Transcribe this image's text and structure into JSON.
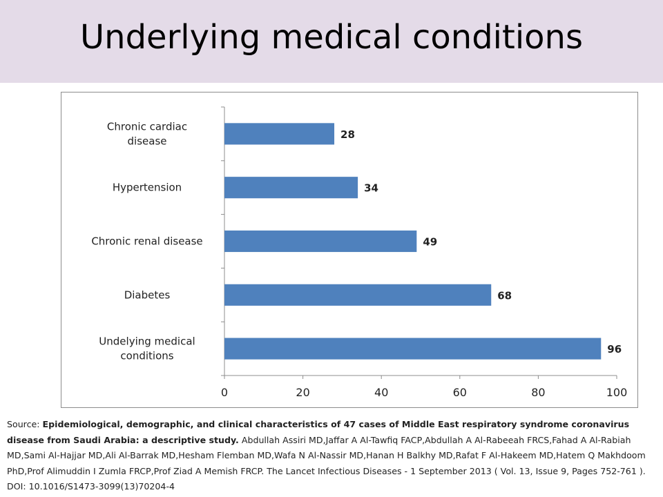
{
  "slide": {
    "title": "Underlying medical conditions"
  },
  "colors": {
    "title_band": "#e4dbe8",
    "bar": "#4f81bd"
  },
  "chart_data": {
    "type": "bar",
    "orientation": "horizontal",
    "categories": [
      "Chronic cardiac disease",
      "Hypertension",
      "Chronic renal disease",
      "Diabetes",
      "Undelying medical conditions"
    ],
    "values": [
      28,
      34,
      49,
      68,
      96
    ],
    "data_labels": [
      "28",
      "34",
      "49",
      "68",
      "96"
    ],
    "xlim": [
      0,
      100
    ],
    "x_ticks": [
      0,
      20,
      40,
      60,
      80,
      100
    ],
    "grid": false,
    "legend": "none",
    "title": "",
    "xlabel": "",
    "ylabel": ""
  },
  "source": {
    "prefix": "Source: ",
    "bold_title": "Epidemiological, demographic, and clinical characteristics of 47 cases of Middle East respiratory syndrome coronavirus disease from Saudi Arabia: a descriptive study.",
    "rest": " Abdullah Assiri MD,Jaffar A Al-Tawfiq FACP,Abdullah A Al-Rabeeah FRCS,Fahad A Al-Rabiah MD,Sami Al-Hajjar MD,Ali Al-Barrak MD,Hesham Flemban MD,Wafa N Al-Nassir MD,Hanan H Balkhy MD,Rafat F Al-Hakeem MD,Hatem Q Makhdoom PhD,Prof Alimuddin I Zumla FRCP,Prof Ziad A Memish FRCP. The Lancet Infectious Diseases - 1 September 2013 ( Vol. 13, Issue 9, Pages 752-761 ). DOI: 10.1016/S1473-3099(13)70204-4"
  }
}
